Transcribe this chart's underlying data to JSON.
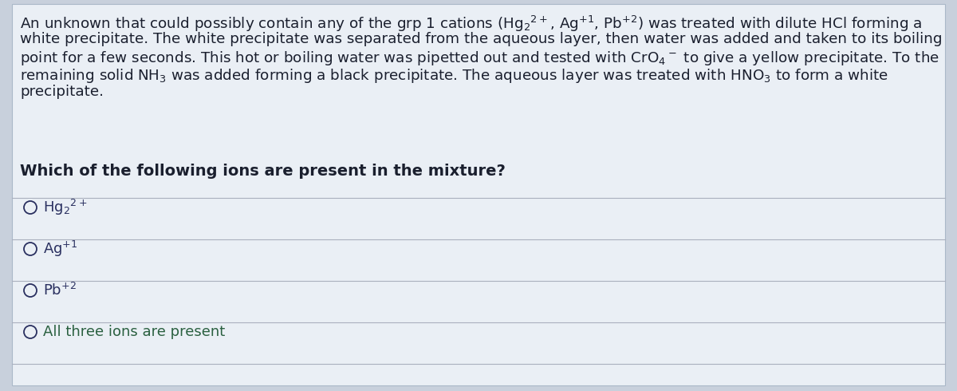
{
  "background_color": "#c8d0dc",
  "panel_color": "#dce4ec",
  "text_color": "#1a1f2e",
  "question_color": "#1a1f2e",
  "option_text_color": "#2a3060",
  "option_last_color": "#2a6040",
  "line_color": "#aab0be",
  "font_size_paragraph": 13.2,
  "font_size_question": 14.0,
  "font_size_options": 13.0,
  "paragraph_line1": "An unknown that could possibly contain any of the grp 1 cations (Hg",
  "paragraph_line1b": "2+",
  "paragraph_rest": ", Ag",
  "figsize": [
    12.0,
    4.9
  ],
  "dpi": 100
}
